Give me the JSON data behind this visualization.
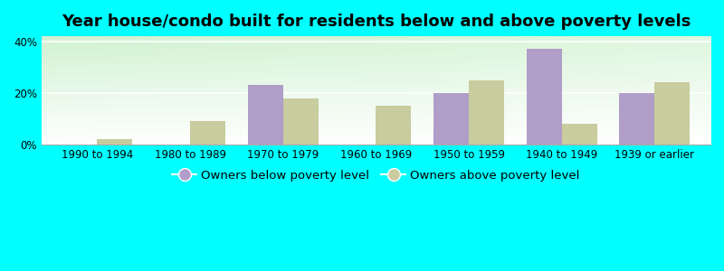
{
  "title": "Year house/condo built for residents below and above poverty levels",
  "categories": [
    "1990 to 1994",
    "1980 to 1989",
    "1970 to 1979",
    "1960 to 1969",
    "1950 to 1959",
    "1940 to 1949",
    "1939 or earlier"
  ],
  "below_poverty": [
    0,
    0,
    23,
    0,
    20,
    37,
    20
  ],
  "above_poverty": [
    2,
    9,
    18,
    15,
    25,
    8,
    24
  ],
  "below_color": "#b09ec8",
  "above_color": "#c8cc9e",
  "background_color": "#00ffff",
  "ylim": [
    0,
    42
  ],
  "yticks": [
    0,
    20,
    40
  ],
  "yticklabels": [
    "0%",
    "20%",
    "40%"
  ],
  "bar_width": 0.38,
  "legend_below": "Owners below poverty level",
  "legend_above": "Owners above poverty level",
  "title_fontsize": 13,
  "tick_fontsize": 8.5,
  "legend_fontsize": 9.5
}
